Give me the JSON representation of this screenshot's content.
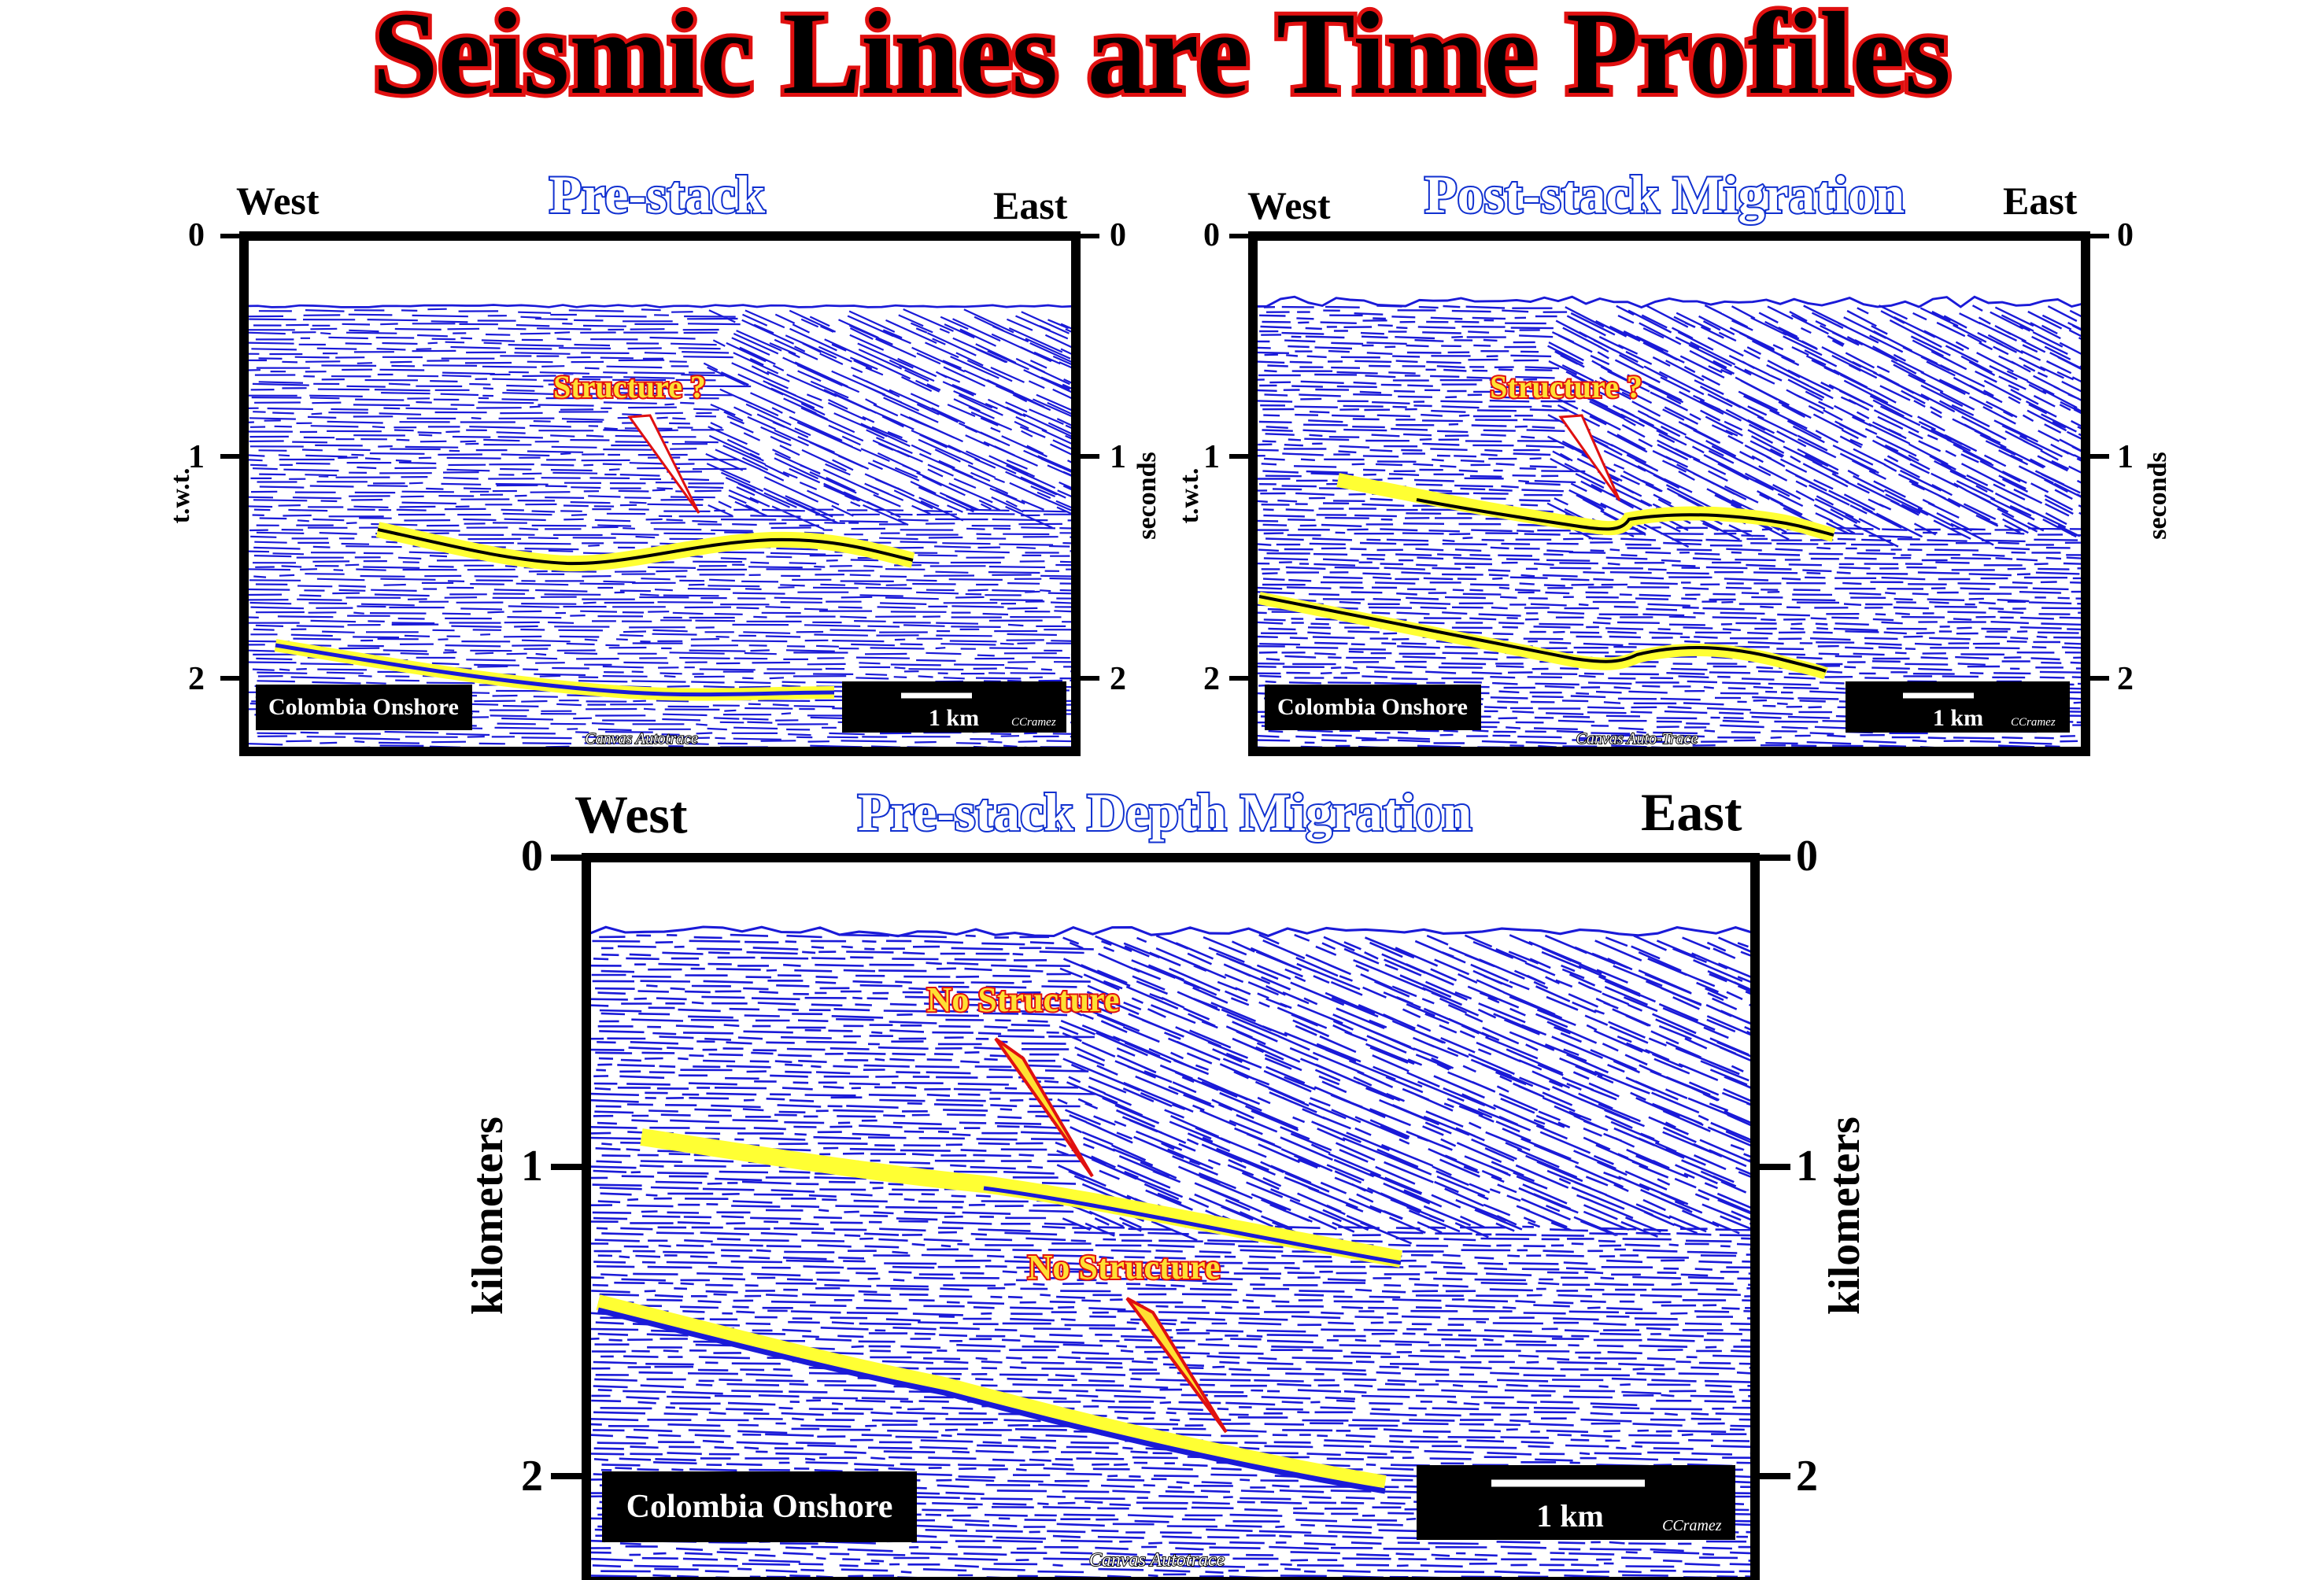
{
  "title": "Seismic Lines are Time Profiles",
  "panels": [
    {
      "heading": "Pre-stack",
      "west": "West",
      "east": "East",
      "left_axis_label": "t.w.t.",
      "right_axis_label": "seconds",
      "ticks": [
        "0",
        "1",
        "2"
      ],
      "annotation": "Structure ?",
      "location": "Colombia Onshore",
      "scale_label": "1 km",
      "credit": "CCramez",
      "watermark": "Canvas Autotrace"
    },
    {
      "heading": "Post-stack Migration",
      "west": "West",
      "east": "East",
      "left_axis_label": "t.w.t.",
      "right_axis_label": "seconds",
      "ticks": [
        "0",
        "1",
        "2"
      ],
      "annotation": "Structure ?",
      "location": "Colombia Onshore",
      "scale_label": "1 km",
      "credit": "CCramez",
      "watermark": "Canvas Auto-Trace"
    },
    {
      "heading": "Pre-stack Depth Migration",
      "west": "West",
      "east": "East",
      "left_axis_label": "kilometers",
      "right_axis_label": "kilometers",
      "ticks": [
        "0",
        "1",
        "2"
      ],
      "annotations": [
        "No Structure",
        "No Structure"
      ],
      "location": "Colombia Onshore",
      "scale_label": "1 km",
      "credit": "CCramez",
      "watermark": "Canvas Autotrace"
    }
  ],
  "colors": {
    "title_fill": "#000000",
    "title_outline": "#e01010",
    "heading_fill": "#ffffff",
    "heading_outline": "#1030d0",
    "reflector": "#1a1ad8",
    "horizon_highlight": "#ffff33",
    "annotation_fill": "#ffe033",
    "annotation_outline": "#e01010",
    "frame": "#000000"
  }
}
